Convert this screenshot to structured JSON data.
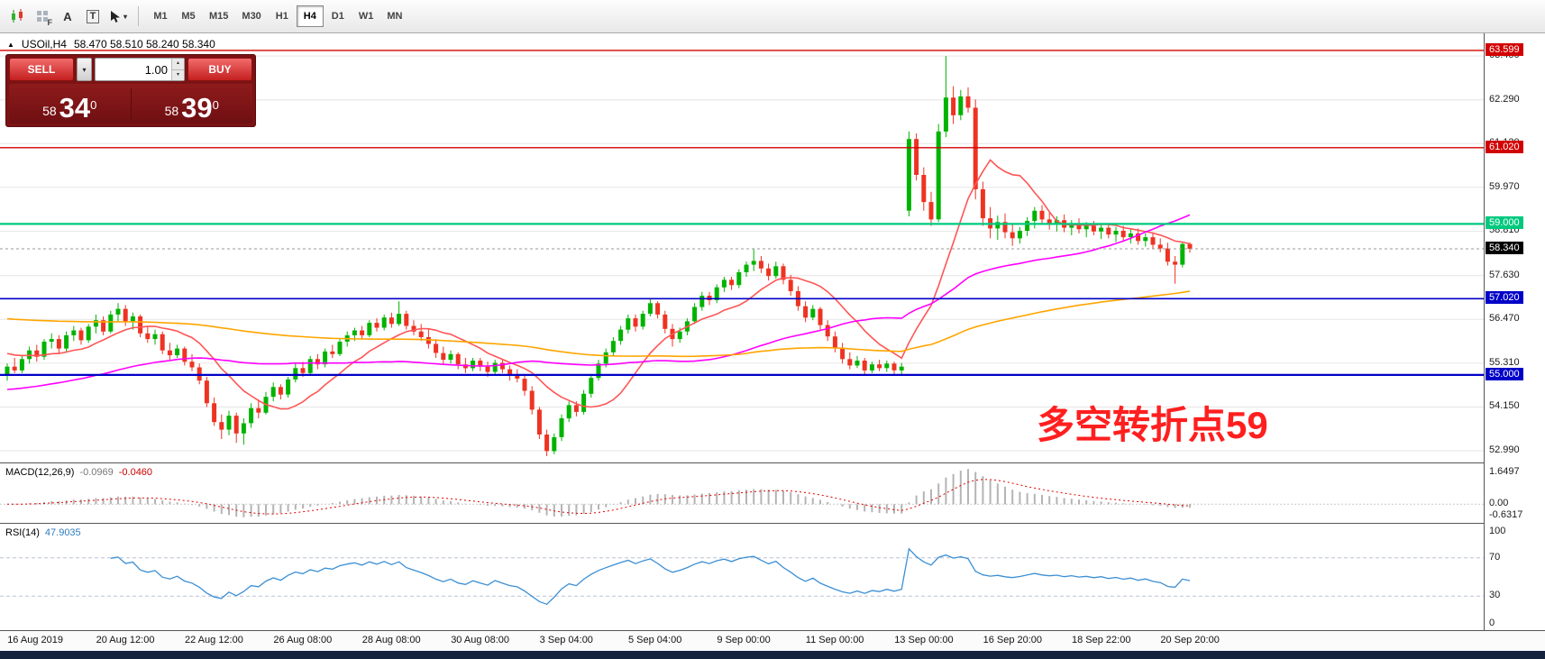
{
  "window": {
    "bottom_strip_color": "#16233f"
  },
  "icons": {
    "caret_down": "▾",
    "spin_up": "▴",
    "spin_down": "▾",
    "symbol_marker": "▲"
  },
  "toolbar": {
    "tools": {
      "f_label": "F",
      "a_label": "A",
      "t_label": "T"
    },
    "timeframes": [
      {
        "label": "M1",
        "active": false
      },
      {
        "label": "M5",
        "active": false
      },
      {
        "label": "M15",
        "active": false
      },
      {
        "label": "M30",
        "active": false
      },
      {
        "label": "H1",
        "active": false
      },
      {
        "label": "H4",
        "active": true
      },
      {
        "label": "D1",
        "active": false
      },
      {
        "label": "W1",
        "active": false
      },
      {
        "label": "MN",
        "active": false
      }
    ]
  },
  "trade_panel": {
    "sell_label": "SELL",
    "buy_label": "BUY",
    "volume": "1.00",
    "bid_prefix": "58",
    "bid_big": "34",
    "bid_sup": "0",
    "ask_prefix": "58",
    "ask_big": "39",
    "ask_sup": "0"
  },
  "chart": {
    "symbol_title": "USOil,H4",
    "ohlc_text": "58.470 58.510 58.240 58.340",
    "annotation_text": "多空转折点59",
    "annotation_color": "#ff1f1f",
    "colors": {
      "up": "#00b300",
      "down": "#ee3322",
      "ma_fast": "#ff5555",
      "ma_mid": "#ff00ff",
      "ma_slow": "#ffa500",
      "grid": "#e6e6e6"
    },
    "levels": [
      {
        "price": 63.599,
        "label": "63.599",
        "color": "#d20000",
        "width": 1.4
      },
      {
        "price": 61.02,
        "label": "61.020",
        "color": "#d20000",
        "width": 1.4
      },
      {
        "price": 59.0,
        "label": "59.000",
        "color": "#00c97e",
        "width": 2.2
      },
      {
        "price": 57.02,
        "label": "57.020",
        "color": "#0000c8",
        "width": 1.6
      },
      {
        "price": 55.0,
        "label": "55.000",
        "color": "#0000c8",
        "width": 2.2
      }
    ],
    "current_price": {
      "value": 58.34,
      "label": "58.340",
      "bg": "#000000"
    }
  },
  "chart_data": {
    "type": "candlestick",
    "symbol": "USOil",
    "timeframe": "H4",
    "last_ohlc": {
      "open": 58.47,
      "high": 58.51,
      "low": 58.24,
      "close": 58.34
    },
    "price_axis": {
      "min": 52.68,
      "max": 64.05,
      "gridlines": [
        {
          "value": 63.45,
          "label": "63.450"
        },
        {
          "value": 62.29,
          "label": "62.290"
        },
        {
          "value": 61.13,
          "label": "61.130"
        },
        {
          "value": 59.97,
          "label": "59.970"
        },
        {
          "value": 58.81,
          "label": "58.810"
        },
        {
          "value": 57.63,
          "label": "57.630"
        },
        {
          "value": 56.47,
          "label": "56.470"
        },
        {
          "value": 55.31,
          "label": "55.310"
        },
        {
          "value": 54.15,
          "label": "54.150"
        },
        {
          "value": 52.99,
          "label": "52.990"
        }
      ]
    },
    "moving_averages": [
      {
        "name": "fast-red",
        "window": 12,
        "seed": 55.6,
        "color_key": "ma_fast"
      },
      {
        "name": "mid-magenta",
        "window": 40,
        "seed": 54.6,
        "color_key": "ma_mid"
      },
      {
        "name": "slow-orange",
        "window": 100,
        "seed": 56.5,
        "color_key": "ma_slow"
      }
    ],
    "candles": [
      [
        55.0,
        55.3,
        54.85,
        55.22
      ],
      [
        55.22,
        55.45,
        55.05,
        55.12
      ],
      [
        55.12,
        55.5,
        55.05,
        55.42
      ],
      [
        55.42,
        55.75,
        55.3,
        55.65
      ],
      [
        55.65,
        55.8,
        55.35,
        55.48
      ],
      [
        55.48,
        55.95,
        55.4,
        55.88
      ],
      [
        55.88,
        56.1,
        55.7,
        55.95
      ],
      [
        55.95,
        56.05,
        55.55,
        55.7
      ],
      [
        55.7,
        56.15,
        55.6,
        56.05
      ],
      [
        56.05,
        56.3,
        55.9,
        56.18
      ],
      [
        56.18,
        56.25,
        55.8,
        55.92
      ],
      [
        55.92,
        56.35,
        55.85,
        56.28
      ],
      [
        56.28,
        56.6,
        56.1,
        56.45
      ],
      [
        56.45,
        56.55,
        56.05,
        56.15
      ],
      [
        56.15,
        56.7,
        56.1,
        56.6
      ],
      [
        56.6,
        56.9,
        56.4,
        56.75
      ],
      [
        56.75,
        56.85,
        56.3,
        56.42
      ],
      [
        56.42,
        56.65,
        56.2,
        56.55
      ],
      [
        56.55,
        56.6,
        56.0,
        56.1
      ],
      [
        56.1,
        56.3,
        55.85,
        55.95
      ],
      [
        55.95,
        56.2,
        55.8,
        56.08
      ],
      [
        56.08,
        56.15,
        55.55,
        55.65
      ],
      [
        55.65,
        55.85,
        55.4,
        55.52
      ],
      [
        55.52,
        55.8,
        55.45,
        55.7
      ],
      [
        55.7,
        55.75,
        55.25,
        55.35
      ],
      [
        55.35,
        55.55,
        55.1,
        55.2
      ],
      [
        55.2,
        55.3,
        54.75,
        54.85
      ],
      [
        54.85,
        54.95,
        54.15,
        54.25
      ],
      [
        54.25,
        54.4,
        53.65,
        53.75
      ],
      [
        53.75,
        53.95,
        53.3,
        53.55
      ],
      [
        53.55,
        54.05,
        53.4,
        53.92
      ],
      [
        53.92,
        54.0,
        53.2,
        53.45
      ],
      [
        53.45,
        53.85,
        53.15,
        53.72
      ],
      [
        53.72,
        54.25,
        53.6,
        54.12
      ],
      [
        54.12,
        54.35,
        53.85,
        54.0
      ],
      [
        54.0,
        54.55,
        53.95,
        54.42
      ],
      [
        54.42,
        54.8,
        54.3,
        54.68
      ],
      [
        54.68,
        54.75,
        54.35,
        54.48
      ],
      [
        54.48,
        54.95,
        54.4,
        54.88
      ],
      [
        54.88,
        55.3,
        54.8,
        55.18
      ],
      [
        55.18,
        55.35,
        54.95,
        55.05
      ],
      [
        55.05,
        55.5,
        55.0,
        55.42
      ],
      [
        55.42,
        55.55,
        55.15,
        55.28
      ],
      [
        55.28,
        55.7,
        55.2,
        55.62
      ],
      [
        55.62,
        55.8,
        55.45,
        55.55
      ],
      [
        55.55,
        55.95,
        55.5,
        55.88
      ],
      [
        55.88,
        56.15,
        55.75,
        56.05
      ],
      [
        56.05,
        56.25,
        55.9,
        56.18
      ],
      [
        56.18,
        56.3,
        55.95,
        56.05
      ],
      [
        56.05,
        56.45,
        56.0,
        56.38
      ],
      [
        56.38,
        56.5,
        56.15,
        56.25
      ],
      [
        56.25,
        56.6,
        56.18,
        56.52
      ],
      [
        56.52,
        56.65,
        56.25,
        56.35
      ],
      [
        56.35,
        56.95,
        56.3,
        56.62
      ],
      [
        56.62,
        56.7,
        56.2,
        56.3
      ],
      [
        56.3,
        56.45,
        56.05,
        56.15
      ],
      [
        56.15,
        56.35,
        55.9,
        56.0
      ],
      [
        56.0,
        56.2,
        55.7,
        55.82
      ],
      [
        55.82,
        55.95,
        55.45,
        55.58
      ],
      [
        55.58,
        55.75,
        55.3,
        55.4
      ],
      [
        55.4,
        55.65,
        55.3,
        55.55
      ],
      [
        55.55,
        55.6,
        55.15,
        55.28
      ],
      [
        55.28,
        55.45,
        55.05,
        55.18
      ],
      [
        55.18,
        55.45,
        55.1,
        55.38
      ],
      [
        55.38,
        55.45,
        55.1,
        55.22
      ],
      [
        55.22,
        55.35,
        54.95,
        55.08
      ],
      [
        55.08,
        55.4,
        55.0,
        55.32
      ],
      [
        55.32,
        55.4,
        55.05,
        55.15
      ],
      [
        55.15,
        55.25,
        54.85,
        54.98
      ],
      [
        54.98,
        55.15,
        54.8,
        54.9
      ],
      [
        54.9,
        55.0,
        54.45,
        54.58
      ],
      [
        54.58,
        54.7,
        53.95,
        54.08
      ],
      [
        54.08,
        54.15,
        53.3,
        53.42
      ],
      [
        53.42,
        53.55,
        52.85,
        52.98
      ],
      [
        52.98,
        53.45,
        52.9,
        53.35
      ],
      [
        53.35,
        53.95,
        53.25,
        53.85
      ],
      [
        53.85,
        54.3,
        53.75,
        54.2
      ],
      [
        54.2,
        54.3,
        53.9,
        54.02
      ],
      [
        54.02,
        54.6,
        53.95,
        54.5
      ],
      [
        54.5,
        55.0,
        54.4,
        54.92
      ],
      [
        54.92,
        55.4,
        54.85,
        55.3
      ],
      [
        55.3,
        55.7,
        55.2,
        55.6
      ],
      [
        55.6,
        56.0,
        55.5,
        55.9
      ],
      [
        55.9,
        56.3,
        55.8,
        56.2
      ],
      [
        56.2,
        56.6,
        56.1,
        56.5
      ],
      [
        56.5,
        56.6,
        56.15,
        56.28
      ],
      [
        56.28,
        56.7,
        56.2,
        56.62
      ],
      [
        56.62,
        57.0,
        56.55,
        56.9
      ],
      [
        56.9,
        56.95,
        56.5,
        56.6
      ],
      [
        56.6,
        56.7,
        56.1,
        56.22
      ],
      [
        56.22,
        56.35,
        55.75,
        55.95
      ],
      [
        55.95,
        56.25,
        55.85,
        56.15
      ],
      [
        56.15,
        56.5,
        56.05,
        56.42
      ],
      [
        56.42,
        56.9,
        56.35,
        56.8
      ],
      [
        56.8,
        57.2,
        56.7,
        57.1
      ],
      [
        57.1,
        57.2,
        56.85,
        56.98
      ],
      [
        56.98,
        57.4,
        56.9,
        57.32
      ],
      [
        57.32,
        57.6,
        57.2,
        57.52
      ],
      [
        57.52,
        57.6,
        57.25,
        57.38
      ],
      [
        57.38,
        57.8,
        57.3,
        57.72
      ],
      [
        57.72,
        58.0,
        57.6,
        57.92
      ],
      [
        57.92,
        58.35,
        57.75,
        58.02
      ],
      [
        58.02,
        58.15,
        57.7,
        57.82
      ],
      [
        57.82,
        57.95,
        57.5,
        57.62
      ],
      [
        57.62,
        58.0,
        57.55,
        57.88
      ],
      [
        57.88,
        57.95,
        57.4,
        57.52
      ],
      [
        57.52,
        57.65,
        57.1,
        57.22
      ],
      [
        57.22,
        57.35,
        56.7,
        56.82
      ],
      [
        56.82,
        56.95,
        56.4,
        56.52
      ],
      [
        56.52,
        56.85,
        56.45,
        56.75
      ],
      [
        56.75,
        56.8,
        56.2,
        56.32
      ],
      [
        56.32,
        56.45,
        55.9,
        56.02
      ],
      [
        56.02,
        56.15,
        55.6,
        55.72
      ],
      [
        55.72,
        55.85,
        55.3,
        55.42
      ],
      [
        55.42,
        55.6,
        55.15,
        55.25
      ],
      [
        55.25,
        55.5,
        55.18,
        55.38
      ],
      [
        55.38,
        55.45,
        55.0,
        55.12
      ],
      [
        55.12,
        55.35,
        55.05,
        55.28
      ],
      [
        55.28,
        55.4,
        55.1,
        55.18
      ],
      [
        55.18,
        55.38,
        55.08,
        55.3
      ],
      [
        55.3,
        55.35,
        55.02,
        55.12
      ],
      [
        55.12,
        55.32,
        55.02,
        55.22
      ],
      [
        59.35,
        61.45,
        59.2,
        61.25
      ],
      [
        61.25,
        61.4,
        60.15,
        60.3
      ],
      [
        60.3,
        60.5,
        59.35,
        59.58
      ],
      [
        59.58,
        59.85,
        58.95,
        59.12
      ],
      [
        59.12,
        61.65,
        59.05,
        61.45
      ],
      [
        61.45,
        63.45,
        61.3,
        62.35
      ],
      [
        62.35,
        62.65,
        61.65,
        61.88
      ],
      [
        61.88,
        62.55,
        61.75,
        62.38
      ],
      [
        62.38,
        62.62,
        61.95,
        62.08
      ],
      [
        62.08,
        62.3,
        59.65,
        59.92
      ],
      [
        59.92,
        60.12,
        58.95,
        59.15
      ],
      [
        59.15,
        59.45,
        58.62,
        58.88
      ],
      [
        58.88,
        59.22,
        58.58,
        59.05
      ],
      [
        59.05,
        59.28,
        58.62,
        58.78
      ],
      [
        58.78,
        58.98,
        58.42,
        58.62
      ],
      [
        58.62,
        58.92,
        58.48,
        58.82
      ],
      [
        58.82,
        59.18,
        58.68,
        59.08
      ],
      [
        59.08,
        59.45,
        58.88,
        59.35
      ],
      [
        59.35,
        59.5,
        59.0,
        59.12
      ],
      [
        59.12,
        59.3,
        58.85,
        59.0
      ],
      [
        59.0,
        59.2,
        58.8,
        59.1
      ],
      [
        59.1,
        59.25,
        58.78,
        58.9
      ],
      [
        58.9,
        59.1,
        58.7,
        59.02
      ],
      [
        59.02,
        59.15,
        58.75,
        58.86
      ],
      [
        58.86,
        59.05,
        58.65,
        58.95
      ],
      [
        58.95,
        59.08,
        58.7,
        58.8
      ],
      [
        58.8,
        59.0,
        58.6,
        58.9
      ],
      [
        58.9,
        59.02,
        58.62,
        58.72
      ],
      [
        58.72,
        58.92,
        58.52,
        58.82
      ],
      [
        58.82,
        58.95,
        58.55,
        58.65
      ],
      [
        58.65,
        58.85,
        58.48,
        58.75
      ],
      [
        58.75,
        58.88,
        58.45,
        58.55
      ],
      [
        58.55,
        58.75,
        58.4,
        58.65
      ],
      [
        58.65,
        58.78,
        58.35,
        58.45
      ],
      [
        58.45,
        58.62,
        58.25,
        58.35
      ],
      [
        58.35,
        58.5,
        57.9,
        58.0
      ],
      [
        58.0,
        58.15,
        57.42,
        57.92
      ],
      [
        57.92,
        58.5,
        57.85,
        58.47
      ],
      [
        58.47,
        58.51,
        58.24,
        58.34
      ]
    ]
  },
  "macd": {
    "title": "MACD(12,26,9)",
    "value_main": "-0.0969",
    "value_signal": "-0.0460",
    "axis_labels": {
      "top": "1.6497",
      "zero": "0.00",
      "bottom": "-0.6317"
    },
    "params": {
      "fast": 12,
      "slow": 26,
      "signal": 9
    },
    "histogram_color": "#b4b4b4",
    "signal_color": "#e00000"
  },
  "rsi": {
    "title": "RSI(14)",
    "value": "47.9035",
    "period": 14,
    "color": "#3b8fd4",
    "levels": [
      70,
      30
    ],
    "axis_labels": {
      "top": "100",
      "upper": "70",
      "lower": "30",
      "bottom": "0"
    }
  },
  "time_axis": {
    "labels": [
      "16 Aug 2019",
      "20 Aug 12:00",
      "22 Aug 12:00",
      "26 Aug 08:00",
      "28 Aug 08:00",
      "30 Aug 08:00",
      "3 Sep 04:00",
      "5 Sep 04:00",
      "9 Sep 00:00",
      "11 Sep 00:00",
      "13 Sep 00:00",
      "16 Sep 20:00",
      "18 Sep 22:00",
      "20 Sep 20:00"
    ]
  }
}
